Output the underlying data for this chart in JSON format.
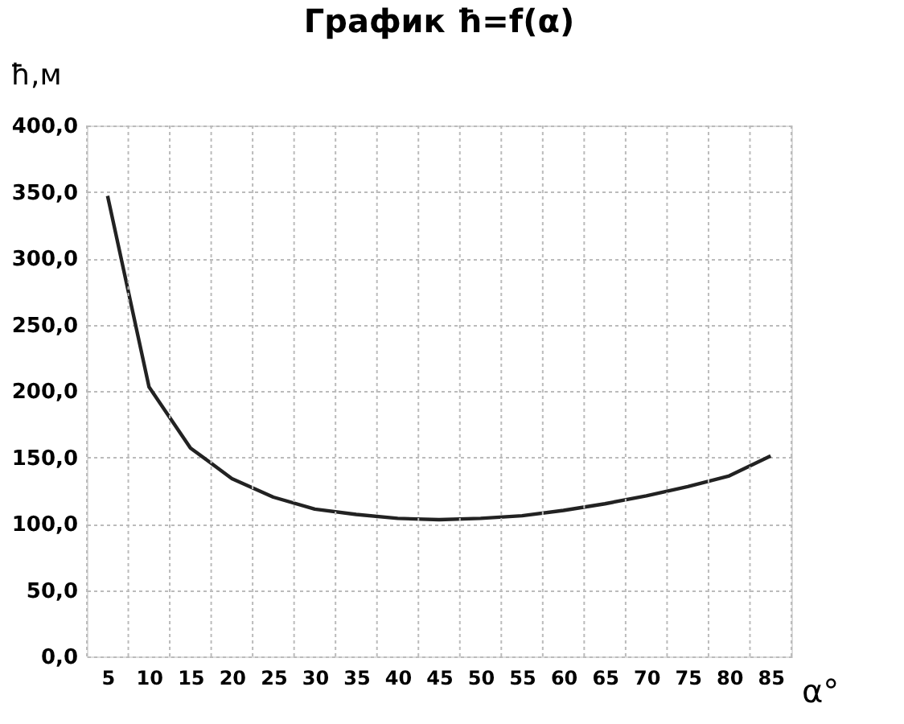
{
  "chart_data": {
    "type": "line",
    "title": "График ħ=f(α)",
    "xlabel": "α°",
    "ylabel": "ħ,м",
    "categories": [
      "5",
      "10",
      "15",
      "20",
      "25",
      "30",
      "35",
      "40",
      "45",
      "50",
      "55",
      "60",
      "65",
      "70",
      "75",
      "80",
      "85"
    ],
    "series": [
      {
        "color": "#222222",
        "values": [
          347,
          203,
          157,
          134,
          120,
          111,
          107,
          104,
          103,
          104,
          106,
          110,
          115,
          121,
          128,
          136,
          151
        ]
      }
    ],
    "ylim": [
      0,
      400
    ],
    "yticks": [
      {
        "value": 0,
        "label": "0,0"
      },
      {
        "value": 50,
        "label": "50,0"
      },
      {
        "value": 100,
        "label": "100,0"
      },
      {
        "value": 150,
        "label": "150,0"
      },
      {
        "value": 200,
        "label": "200,0"
      },
      {
        "value": 250,
        "label": "250,0"
      },
      {
        "value": 300,
        "label": "300,0"
      },
      {
        "value": 350,
        "label": "350,0"
      },
      {
        "value": 400,
        "label": "400,0"
      }
    ],
    "grid": true,
    "marker": "none",
    "line_style": "solid"
  }
}
